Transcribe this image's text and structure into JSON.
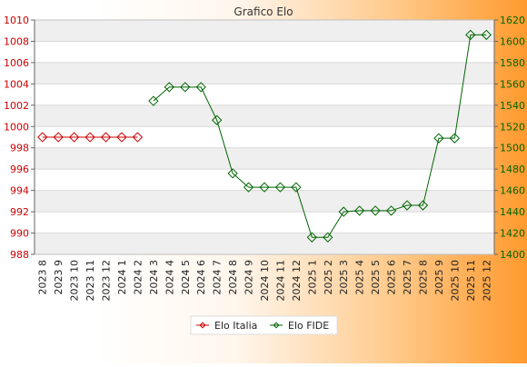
{
  "chart_data": {
    "type": "line",
    "title": "Grafico Elo",
    "xlabel": "",
    "ylabel": "",
    "categories": [
      "2023 8",
      "2023 9",
      "2023 10",
      "2023 11",
      "2023 12",
      "2024 1",
      "2024 2",
      "2024 3",
      "2024 4",
      "2024 5",
      "2024 6",
      "2024 7",
      "2024 8",
      "2024 9",
      "2024 10",
      "2024 11",
      "2024 12",
      "2025 1",
      "2025 2",
      "2025 3",
      "2025 4",
      "2025 5",
      "2025 6",
      "2025 7",
      "2025 8",
      "2025 9",
      "2025 10",
      "2025 11",
      "2025 12"
    ],
    "y_left": {
      "min": 988,
      "max": 1010,
      "ticks": [
        988,
        990,
        992,
        994,
        996,
        998,
        1000,
        1002,
        1004,
        1006,
        1008,
        1010
      ],
      "color": "#cc0000"
    },
    "y_right": {
      "min": 1400,
      "max": 1620,
      "ticks": [
        1400,
        1420,
        1440,
        1460,
        1480,
        1500,
        1520,
        1540,
        1560,
        1580,
        1600,
        1620
      ],
      "color": "#006600"
    },
    "series": [
      {
        "name": "Elo Italia",
        "axis": "left",
        "color": "#cc0000",
        "values": [
          999,
          999,
          999,
          999,
          999,
          999,
          999,
          null,
          null,
          null,
          null,
          null,
          null,
          null,
          null,
          null,
          null,
          null,
          null,
          null,
          null,
          null,
          null,
          null,
          null,
          null,
          null,
          null,
          null
        ]
      },
      {
        "name": "Elo FIDE",
        "axis": "right",
        "color": "#006600",
        "values": [
          null,
          null,
          null,
          null,
          null,
          null,
          null,
          1544,
          1557,
          1557,
          1557,
          1526,
          1476,
          1463,
          1463,
          1463,
          1463,
          1416,
          1416,
          1440,
          1441,
          1441,
          1441,
          1446,
          1446,
          1509,
          1509,
          1606,
          1606
        ]
      }
    ],
    "grid": true,
    "legend_position": "bottom"
  }
}
